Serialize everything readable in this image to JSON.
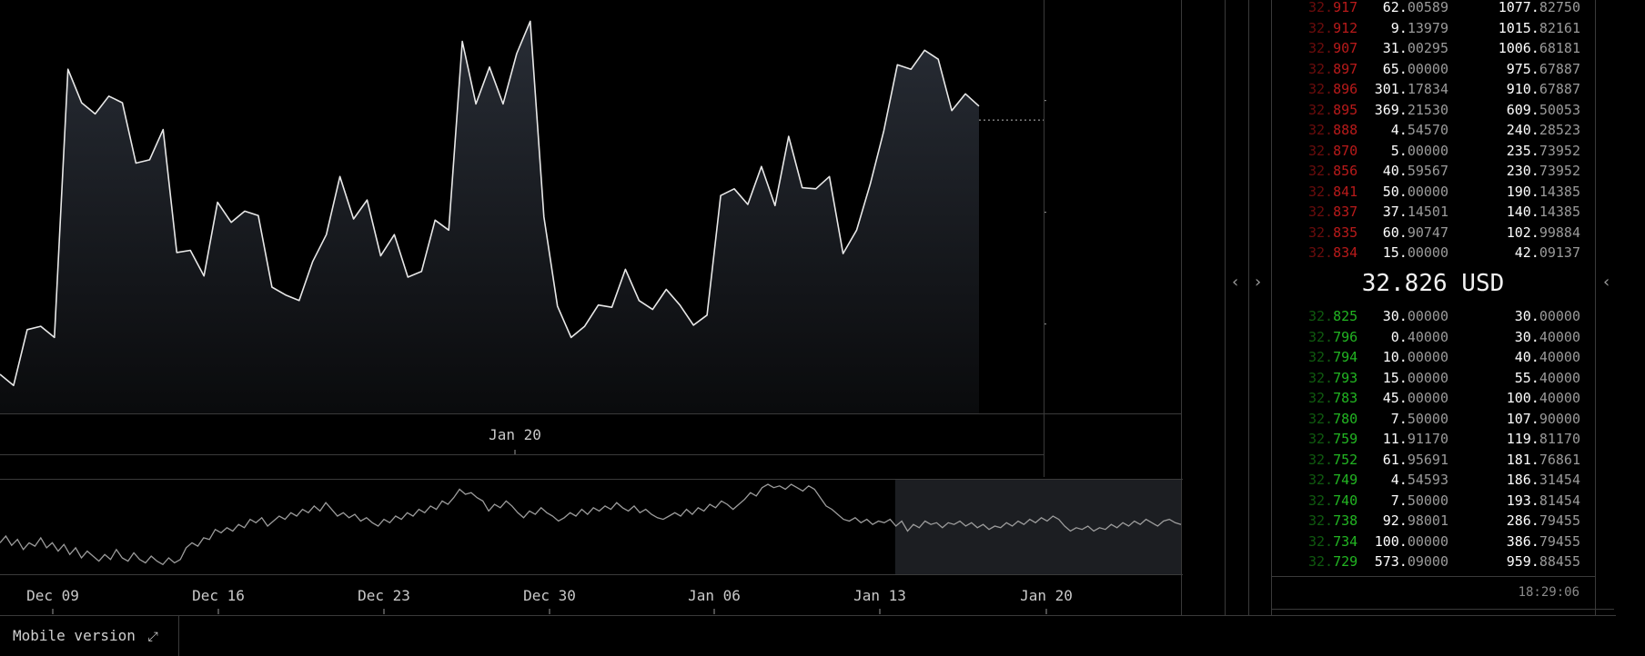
{
  "chart_data": {
    "type": "line",
    "price_series": [
      30.55,
      30.45,
      30.95,
      30.98,
      30.88,
      33.28,
      32.98,
      32.88,
      33.04,
      32.98,
      32.44,
      32.47,
      32.74,
      31.64,
      31.66,
      31.43,
      32.09,
      31.91,
      32.01,
      31.97,
      31.33,
      31.26,
      31.21,
      31.56,
      31.8,
      32.32,
      31.94,
      32.11,
      31.61,
      31.8,
      31.42,
      31.47,
      31.93,
      31.84,
      33.53,
      32.97,
      33.3,
      32.97,
      33.42,
      33.71,
      31.96,
      31.16,
      30.88,
      30.98,
      31.17,
      31.15,
      31.49,
      31.21,
      31.13,
      31.31,
      31.17,
      30.99,
      31.08,
      32.15,
      32.21,
      32.07,
      32.41,
      32.06,
      32.68,
      32.22,
      32.21,
      32.32,
      31.63,
      31.84,
      32.25,
      32.73,
      33.32,
      33.28,
      33.45,
      33.37,
      32.91,
      33.06,
      32.95
    ],
    "y_ticks": [
      "33",
      "32",
      "31"
    ],
    "y_tick_values": [
      33,
      32,
      31
    ],
    "y_range": [
      30.2,
      33.9
    ],
    "last_price_label": "32.826",
    "last_price": 32.826,
    "x_labels_main": [
      "Jan 20"
    ],
    "navigator_series": [
      0.3,
      0.38,
      0.27,
      0.34,
      0.22,
      0.3,
      0.26,
      0.36,
      0.24,
      0.3,
      0.2,
      0.28,
      0.16,
      0.24,
      0.12,
      0.2,
      0.14,
      0.08,
      0.16,
      0.1,
      0.22,
      0.12,
      0.08,
      0.18,
      0.1,
      0.06,
      0.14,
      0.08,
      0.04,
      0.12,
      0.06,
      0.1,
      0.24,
      0.3,
      0.26,
      0.36,
      0.34,
      0.46,
      0.42,
      0.48,
      0.44,
      0.52,
      0.48,
      0.58,
      0.54,
      0.6,
      0.5,
      0.56,
      0.62,
      0.58,
      0.66,
      0.62,
      0.7,
      0.66,
      0.74,
      0.68,
      0.78,
      0.7,
      0.62,
      0.66,
      0.6,
      0.64,
      0.56,
      0.6,
      0.54,
      0.5,
      0.58,
      0.54,
      0.62,
      0.58,
      0.66,
      0.62,
      0.7,
      0.66,
      0.74,
      0.7,
      0.8,
      0.76,
      0.84,
      0.94,
      0.88,
      0.9,
      0.84,
      0.8,
      0.68,
      0.76,
      0.72,
      0.8,
      0.74,
      0.66,
      0.6,
      0.68,
      0.64,
      0.72,
      0.66,
      0.62,
      0.56,
      0.6,
      0.66,
      0.62,
      0.7,
      0.64,
      0.72,
      0.68,
      0.74,
      0.7,
      0.78,
      0.72,
      0.68,
      0.74,
      0.66,
      0.7,
      0.64,
      0.6,
      0.58,
      0.62,
      0.66,
      0.62,
      0.7,
      0.64,
      0.72,
      0.68,
      0.76,
      0.72,
      0.8,
      0.76,
      0.7,
      0.76,
      0.82,
      0.9,
      0.86,
      0.96,
      1.0,
      0.96,
      0.98,
      0.94,
      1.0,
      0.96,
      0.92,
      0.98,
      0.94,
      0.84,
      0.74,
      0.7,
      0.64,
      0.58,
      0.56,
      0.6,
      0.54,
      0.58,
      0.52,
      0.56,
      0.54,
      0.58,
      0.5,
      0.56,
      0.44,
      0.52,
      0.48,
      0.56,
      0.52,
      0.54,
      0.48,
      0.54,
      0.52,
      0.56,
      0.5,
      0.54,
      0.48,
      0.52,
      0.46,
      0.5,
      0.48,
      0.54,
      0.5,
      0.56,
      0.52,
      0.58,
      0.54,
      0.6,
      0.56,
      0.62,
      0.58,
      0.5,
      0.44,
      0.48,
      0.46,
      0.5,
      0.44,
      0.48,
      0.46,
      0.52,
      0.48,
      0.54,
      0.5,
      0.56,
      0.52,
      0.58,
      0.54,
      0.5,
      0.56,
      0.58,
      0.54,
      0.52
    ],
    "navigator_selection": [
      0.758,
      1.0
    ],
    "x_labels_navigator": [
      "Dec 09",
      "Dec 16",
      "Dec 23",
      "Dec 30",
      "Jan 06",
      "Jan 13",
      "Jan 20"
    ]
  },
  "order_book": {
    "asks": [
      {
        "price": "32.917",
        "amount": "62.00589",
        "total": "1077.82750"
      },
      {
        "price": "32.912",
        "amount": "9.13979",
        "total": "1015.82161"
      },
      {
        "price": "32.907",
        "amount": "31.00295",
        "total": "1006.68181"
      },
      {
        "price": "32.897",
        "amount": "65.00000",
        "total": "975.67887"
      },
      {
        "price": "32.896",
        "amount": "301.17834",
        "total": "910.67887"
      },
      {
        "price": "32.895",
        "amount": "369.21530",
        "total": "609.50053"
      },
      {
        "price": "32.888",
        "amount": "4.54570",
        "total": "240.28523"
      },
      {
        "price": "32.870",
        "amount": "5.00000",
        "total": "235.73952"
      },
      {
        "price": "32.856",
        "amount": "40.59567",
        "total": "230.73952"
      },
      {
        "price": "32.841",
        "amount": "50.00000",
        "total": "190.14385"
      },
      {
        "price": "32.837",
        "amount": "37.14501",
        "total": "140.14385"
      },
      {
        "price": "32.835",
        "amount": "60.90747",
        "total": "102.99884"
      },
      {
        "price": "32.834",
        "amount": "15.00000",
        "total": "42.09137"
      }
    ],
    "mid_price": "32.826 USD",
    "bids": [
      {
        "price": "32.825",
        "amount": "30.00000",
        "total": "30.00000"
      },
      {
        "price": "32.796",
        "amount": "0.40000",
        "total": "30.40000"
      },
      {
        "price": "32.794",
        "amount": "10.00000",
        "total": "40.40000"
      },
      {
        "price": "32.793",
        "amount": "15.00000",
        "total": "55.40000"
      },
      {
        "price": "32.783",
        "amount": "45.00000",
        "total": "100.40000"
      },
      {
        "price": "32.780",
        "amount": "7.50000",
        "total": "107.90000"
      },
      {
        "price": "32.759",
        "amount": "11.91170",
        "total": "119.81170"
      },
      {
        "price": "32.752",
        "amount": "61.95691",
        "total": "181.76861"
      },
      {
        "price": "32.749",
        "amount": "4.54593",
        "total": "186.31454"
      },
      {
        "price": "32.740",
        "amount": "7.50000",
        "total": "193.81454"
      },
      {
        "price": "32.738",
        "amount": "92.98001",
        "total": "286.79455"
      },
      {
        "price": "32.734",
        "amount": "100.00000",
        "total": "386.79455"
      },
      {
        "price": "32.729",
        "amount": "573.09000",
        "total": "959.88455"
      }
    ],
    "time": "18:29:06"
  },
  "arrows": {
    "left": "‹",
    "right": "›"
  },
  "footer": {
    "mobile_label": "Mobile version",
    "expand_icon": "⤢"
  },
  "colors": {
    "ask_dim": "#6b0c0c",
    "ask_bright": "#b81a1a",
    "bid_dim": "#0f5a0f",
    "bid_bright": "#22b422",
    "line": "#e8e8e8",
    "grid": "#3a3a3a"
  }
}
